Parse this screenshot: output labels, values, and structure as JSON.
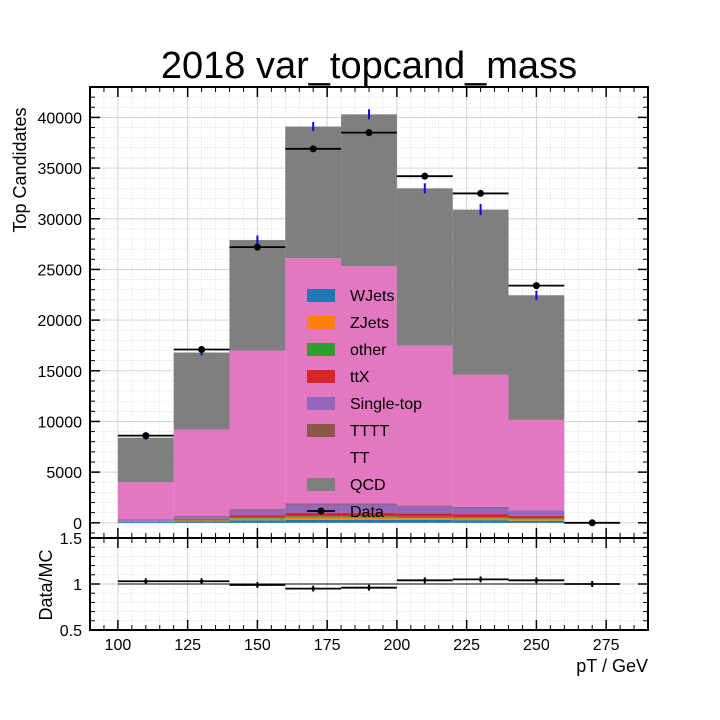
{
  "chart_data": [
    {
      "type": "bar",
      "stacked": true,
      "title": "2018 var_topcand_mass",
      "xlabel": "",
      "ylabel": "Top Candidates",
      "xlim": [
        90,
        290
      ],
      "ylim": [
        -1500,
        43000
      ],
      "bin_edges": [
        100,
        120,
        140,
        160,
        180,
        200,
        220,
        240,
        260,
        280
      ],
      "x_ticks": [
        100,
        125,
        150,
        175,
        200,
        225,
        250,
        275
      ],
      "y_ticks": [
        0,
        5000,
        10000,
        15000,
        20000,
        25000,
        30000,
        35000,
        40000
      ],
      "grid": true,
      "legend_position": "center",
      "series": [
        {
          "name": "WJets",
          "color": "#1f77b4",
          "values": [
            80,
            150,
            250,
            300,
            300,
            280,
            260,
            200,
            0
          ]
        },
        {
          "name": "ZJets",
          "color": "#ff7f0e",
          "values": [
            40,
            80,
            150,
            200,
            200,
            180,
            170,
            140,
            0
          ]
        },
        {
          "name": "other",
          "color": "#2ca02c",
          "values": [
            30,
            60,
            100,
            150,
            150,
            140,
            130,
            110,
            0
          ]
        },
        {
          "name": "ttX",
          "color": "#d62728",
          "values": [
            50,
            110,
            220,
            350,
            350,
            320,
            300,
            250,
            0
          ]
        },
        {
          "name": "Single-top",
          "color": "#9467bd",
          "values": [
            150,
            300,
            550,
            800,
            800,
            700,
            650,
            500,
            0
          ]
        },
        {
          "name": "TTTT",
          "color": "#8c564b",
          "values": [
            20,
            40,
            80,
            100,
            100,
            80,
            70,
            50,
            0
          ]
        },
        {
          "name": "TT",
          "color": "#e377c2",
          "values": [
            3630,
            8460,
            15650,
            24200,
            23400,
            15800,
            13020,
            8900,
            0
          ]
        },
        {
          "name": "QCD",
          "color": "#7f7f7f",
          "values": [
            4400,
            7600,
            10900,
            13000,
            15000,
            15500,
            16300,
            12300,
            0
          ]
        }
      ],
      "mc_stat_errors": [
        200,
        300,
        450,
        450,
        500,
        500,
        550,
        450,
        0
      ],
      "data": {
        "name": "Data",
        "x": [
          110,
          130,
          150,
          170,
          190,
          210,
          230,
          250,
          270
        ],
        "y": [
          8600,
          17100,
          27200,
          36900,
          38500,
          34200,
          32500,
          23400,
          0
        ]
      }
    },
    {
      "type": "scatter",
      "ylabel": "Data/MC",
      "xlabel": "pT / GeV",
      "xlim": [
        90,
        290
      ],
      "ylim": [
        0.5,
        1.5
      ],
      "x_ticks": [
        100,
        125,
        150,
        175,
        200,
        225,
        250,
        275
      ],
      "y_ticks": [
        0.5,
        1.0,
        1.5
      ],
      "grid": true,
      "bin_edges": [
        100,
        120,
        140,
        160,
        180,
        200,
        220,
        240,
        260,
        280
      ],
      "ratio": [
        1.03,
        1.03,
        0.99,
        0.95,
        0.96,
        1.04,
        1.05,
        1.04,
        1.0
      ]
    }
  ]
}
